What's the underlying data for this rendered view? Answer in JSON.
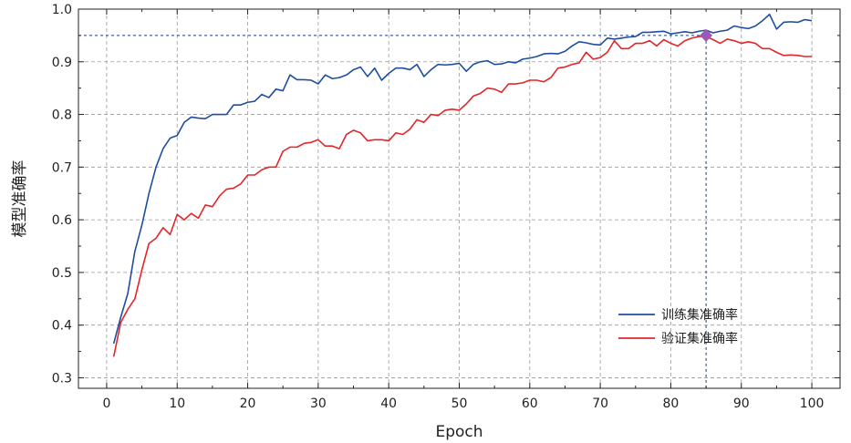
{
  "chart_data": {
    "type": "line",
    "title": "",
    "xlabel": "Epoch",
    "ylabel": "模型准确率",
    "xlim": [
      -4,
      104
    ],
    "ylim": [
      0.28,
      1.0
    ],
    "xticks": [
      "0",
      "10",
      "20",
      "30",
      "40",
      "50",
      "60",
      "70",
      "80",
      "90",
      "100"
    ],
    "yticks": [
      "0.3",
      "0.4",
      "0.5",
      "0.6",
      "0.7",
      "0.8",
      "0.9",
      "1.0"
    ],
    "grid": true,
    "legend": "lower-right",
    "reference_line": {
      "y": 0.95,
      "x": 85
    },
    "marker": {
      "x": 85,
      "y": 0.95,
      "shape": "diamond",
      "color": "#9B59B6"
    },
    "colors": {
      "train": "#1F4E9E",
      "val": "#E3262A",
      "ref": "#1F3A7A",
      "grid": "#9a9a9a"
    },
    "x": [
      1,
      2,
      3,
      4,
      5,
      6,
      7,
      8,
      9,
      10,
      11,
      12,
      13,
      14,
      15,
      16,
      17,
      18,
      19,
      20,
      21,
      22,
      23,
      24,
      25,
      26,
      27,
      28,
      29,
      30,
      31,
      32,
      33,
      34,
      35,
      36,
      37,
      38,
      39,
      40,
      41,
      42,
      43,
      44,
      45,
      46,
      47,
      48,
      49,
      50,
      51,
      52,
      53,
      54,
      55,
      56,
      57,
      58,
      59,
      60,
      61,
      62,
      63,
      64,
      65,
      66,
      67,
      68,
      69,
      70,
      71,
      72,
      73,
      74,
      75,
      76,
      77,
      78,
      79,
      80,
      81,
      82,
      83,
      84,
      85,
      86,
      87,
      88,
      89,
      90,
      91,
      92,
      93,
      94,
      95,
      96,
      97,
      98,
      99,
      100
    ],
    "series": [
      {
        "name": "训练集准确率",
        "color": "#1F4E9E",
        "values": [
          0.365,
          0.415,
          0.46,
          0.54,
          0.59,
          0.65,
          0.7,
          0.735,
          0.755,
          0.76,
          0.785,
          0.795,
          0.793,
          0.792,
          0.8,
          0.8,
          0.8,
          0.818,
          0.818,
          0.823,
          0.825,
          0.838,
          0.832,
          0.848,
          0.845,
          0.875,
          0.866,
          0.866,
          0.865,
          0.858,
          0.875,
          0.868,
          0.87,
          0.875,
          0.885,
          0.89,
          0.872,
          0.888,
          0.865,
          0.878,
          0.888,
          0.888,
          0.885,
          0.895,
          0.872,
          0.885,
          0.895,
          0.894,
          0.895,
          0.897,
          0.882,
          0.895,
          0.9,
          0.902,
          0.895,
          0.896,
          0.9,
          0.898,
          0.905,
          0.907,
          0.91,
          0.915,
          0.916,
          0.915,
          0.92,
          0.93,
          0.938,
          0.936,
          0.933,
          0.932,
          0.945,
          0.943,
          0.945,
          0.947,
          0.948,
          0.956,
          0.956,
          0.957,
          0.958,
          0.953,
          0.955,
          0.957,
          0.955,
          0.958,
          0.96,
          0.955,
          0.958,
          0.96,
          0.968,
          0.965,
          0.963,
          0.968,
          0.978,
          0.99,
          0.962,
          0.975,
          0.976,
          0.975,
          0.98,
          0.978
        ]
      },
      {
        "name": "验证集准确率",
        "color": "#E3262A",
        "values": [
          0.34,
          0.405,
          0.43,
          0.45,
          0.505,
          0.555,
          0.565,
          0.585,
          0.572,
          0.61,
          0.6,
          0.612,
          0.603,
          0.628,
          0.625,
          0.645,
          0.658,
          0.66,
          0.668,
          0.685,
          0.685,
          0.695,
          0.7,
          0.7,
          0.73,
          0.738,
          0.738,
          0.745,
          0.747,
          0.752,
          0.74,
          0.74,
          0.735,
          0.762,
          0.77,
          0.765,
          0.75,
          0.752,
          0.752,
          0.75,
          0.765,
          0.762,
          0.772,
          0.79,
          0.785,
          0.8,
          0.798,
          0.808,
          0.81,
          0.808,
          0.82,
          0.835,
          0.84,
          0.85,
          0.848,
          0.842,
          0.858,
          0.858,
          0.86,
          0.865,
          0.865,
          0.862,
          0.87,
          0.888,
          0.89,
          0.895,
          0.898,
          0.918,
          0.905,
          0.908,
          0.918,
          0.94,
          0.925,
          0.925,
          0.935,
          0.935,
          0.94,
          0.93,
          0.942,
          0.935,
          0.93,
          0.94,
          0.945,
          0.948,
          0.948,
          0.942,
          0.935,
          0.943,
          0.94,
          0.935,
          0.938,
          0.935,
          0.925,
          0.925,
          0.918,
          0.912,
          0.913,
          0.912,
          0.91,
          0.91
        ]
      }
    ]
  }
}
